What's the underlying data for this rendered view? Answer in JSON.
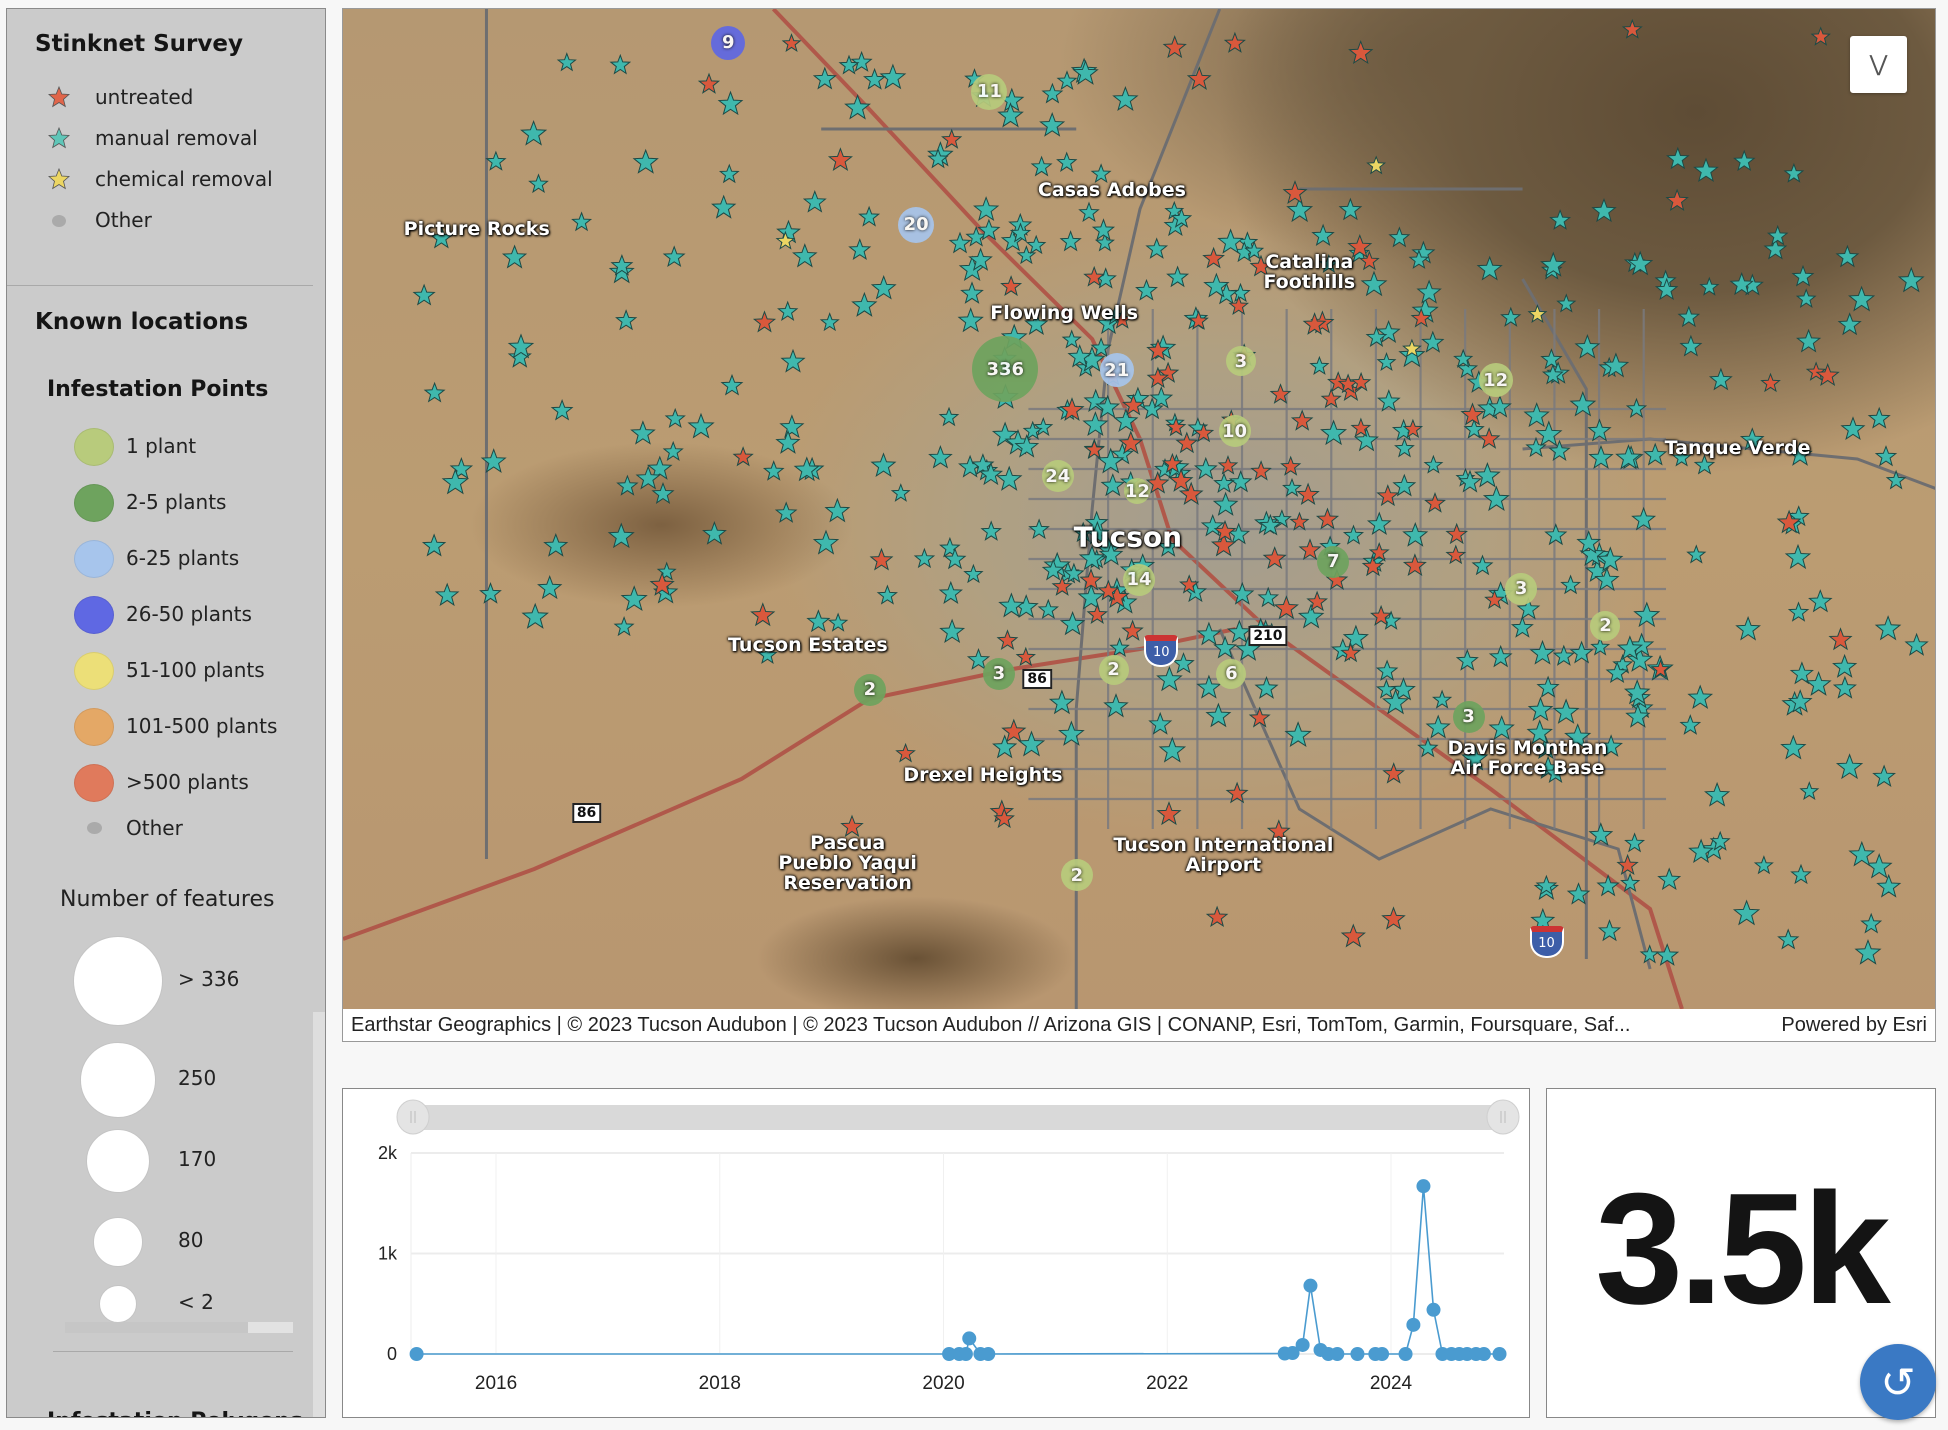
{
  "legend": {
    "survey": {
      "title": "Stinknet Survey",
      "items": [
        {
          "label": "untreated",
          "icon": "star-icon",
          "color": "#e0654a"
        },
        {
          "label": "manual removal",
          "icon": "star-icon",
          "color": "#5fc6b8"
        },
        {
          "label": "chemical removal",
          "icon": "star-icon",
          "color": "#ecd663"
        },
        {
          "label": "Other",
          "icon": "dot-icon",
          "color": "#aaaaaa"
        }
      ]
    },
    "known_locations": {
      "title": "Known locations",
      "subtitle": "Infestation Points",
      "items": [
        {
          "label": "1 plant",
          "color": "#b8cb7c"
        },
        {
          "label": "2-5 plants",
          "color": "#6ea35e"
        },
        {
          "label": "6-25 plants",
          "color": "#a7c5ec"
        },
        {
          "label": "26-50 plants",
          "color": "#5f68e3"
        },
        {
          "label": "51-100 plants",
          "color": "#ecdf78"
        },
        {
          "label": "101-500 plants",
          "color": "#e4a866"
        },
        {
          "label": ">500 plants",
          "color": "#e07a5c"
        },
        {
          "label": "Other",
          "color": "#aaaaaa"
        }
      ]
    },
    "size": {
      "title": "Number of features",
      "items": [
        {
          "label": "> 336"
        },
        {
          "label": "250"
        },
        {
          "label": "170"
        },
        {
          "label": "80"
        },
        {
          "label": "< 2"
        }
      ]
    },
    "next_section": "Infestation Polygons"
  },
  "map": {
    "places": [
      "Picture Rocks",
      "Casas Adobes",
      "Catalina\nFoothills",
      "Flowing Wells",
      "Tanque Verde",
      "Tucson",
      "Tucson Estates",
      "Drexel Heights",
      "Davis Monthan\nAir Force Base",
      "Pascua\nPueblo Yaqui\nReservation",
      "Tucson International\nAirport"
    ],
    "clusters": [
      {
        "count": "9",
        "class": "26-50 plants"
      },
      {
        "count": "11",
        "class": "1 plant"
      },
      {
        "count": "20",
        "class": "6-25 plants"
      },
      {
        "count": "336",
        "class": "2-5 plants"
      },
      {
        "count": "21",
        "class": "6-25 plants"
      },
      {
        "count": "3",
        "class": "1 plant"
      },
      {
        "count": "12",
        "class": "1 plant"
      },
      {
        "count": "10",
        "class": "1 plant"
      },
      {
        "count": "24",
        "class": "1 plant"
      },
      {
        "count": "12",
        "class": "1 plant"
      },
      {
        "count": "7",
        "class": "2-5 plants"
      },
      {
        "count": "14",
        "class": "1 plant"
      },
      {
        "count": "3",
        "class": "1 plant"
      },
      {
        "count": "2",
        "class": "1 plant"
      },
      {
        "count": "3",
        "class": "2-5 plants"
      },
      {
        "count": "2",
        "class": "1 plant"
      },
      {
        "count": "6",
        "class": "1 plant"
      },
      {
        "count": "2",
        "class": "2-5 plants"
      },
      {
        "count": "3",
        "class": "2-5 plants"
      },
      {
        "count": "2",
        "class": "1 plant"
      }
    ],
    "road_shields": [
      "10",
      "10",
      "86",
      "86",
      "210"
    ],
    "collapse_icon": "chevron-double-down-icon",
    "attribution": "Earthstar Geographics | © 2023 Tucson Audubon | © 2023 Tucson Audubon // Arizona GIS | CONANP, Esri, TomTom, Garmin, Foursquare, Saf...",
    "powered_by": "Powered by Esri"
  },
  "chart_data": {
    "type": "line",
    "title": "",
    "xlabel": "",
    "ylabel": "",
    "xlim": [
      2015.24,
      2025.01
    ],
    "ylim": [
      0,
      2000
    ],
    "x_ticks": [
      "2016",
      "2018",
      "2020",
      "2022",
      "2024"
    ],
    "y_ticks": [
      "0",
      "1k",
      "2k"
    ],
    "grid": true,
    "color": "#4a9bd0",
    "x": [
      2015.29,
      2020.05,
      2020.14,
      2020.2,
      2020.23,
      2020.33,
      2020.4,
      2023.05,
      2023.12,
      2023.21,
      2023.28,
      2023.37,
      2023.44,
      2023.52,
      2023.7,
      2023.86,
      2023.92,
      2024.13,
      2024.2,
      2024.29,
      2024.38,
      2024.46,
      2024.54,
      2024.61,
      2024.68,
      2024.76,
      2024.83,
      2024.97
    ],
    "y": [
      0,
      0,
      0,
      0,
      155,
      0,
      0,
      5,
      10,
      90,
      680,
      40,
      0,
      0,
      0,
      0,
      0,
      0,
      290,
      1670,
      440,
      0,
      0,
      0,
      0,
      0,
      0,
      0
    ]
  },
  "indicator": {
    "value": "3.5k"
  },
  "refresh_icon": "refresh-icon"
}
